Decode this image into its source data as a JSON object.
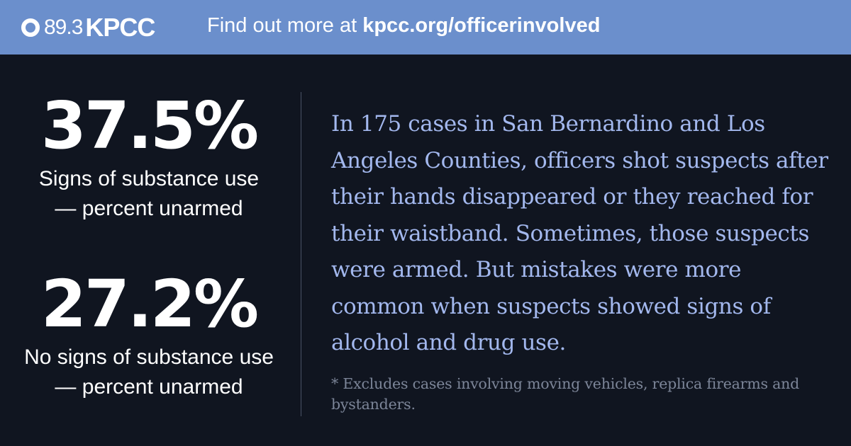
{
  "header": {
    "logo_frequency": "89.3",
    "logo_name": "KPCC",
    "cta_prefix": "Find out more at ",
    "cta_link": "kpcc.org/officerinvolved"
  },
  "stats": [
    {
      "value": "37.5%",
      "label_line1": "Signs of substance use",
      "label_line2": "— percent unarmed"
    },
    {
      "value": "27.2%",
      "label_line1": "No signs of substance use",
      "label_line2": "— percent unarmed"
    }
  ],
  "body_text": "In 175 cases in San Bernardino and Los Angeles Counties, officers shot suspects after their hands disappeared or they reached for their waistband. Sometimes, those suspects were armed. But mistakes were more common when suspects showed signs of alcohol and drug use.",
  "footnote": "* Excludes cases involving moving vehicles, replica firearms and bystanders.",
  "colors": {
    "banner": "#6b8fcc",
    "background": "#101520",
    "body_text": "#a3b8ee",
    "footnote": "#7c8598"
  }
}
